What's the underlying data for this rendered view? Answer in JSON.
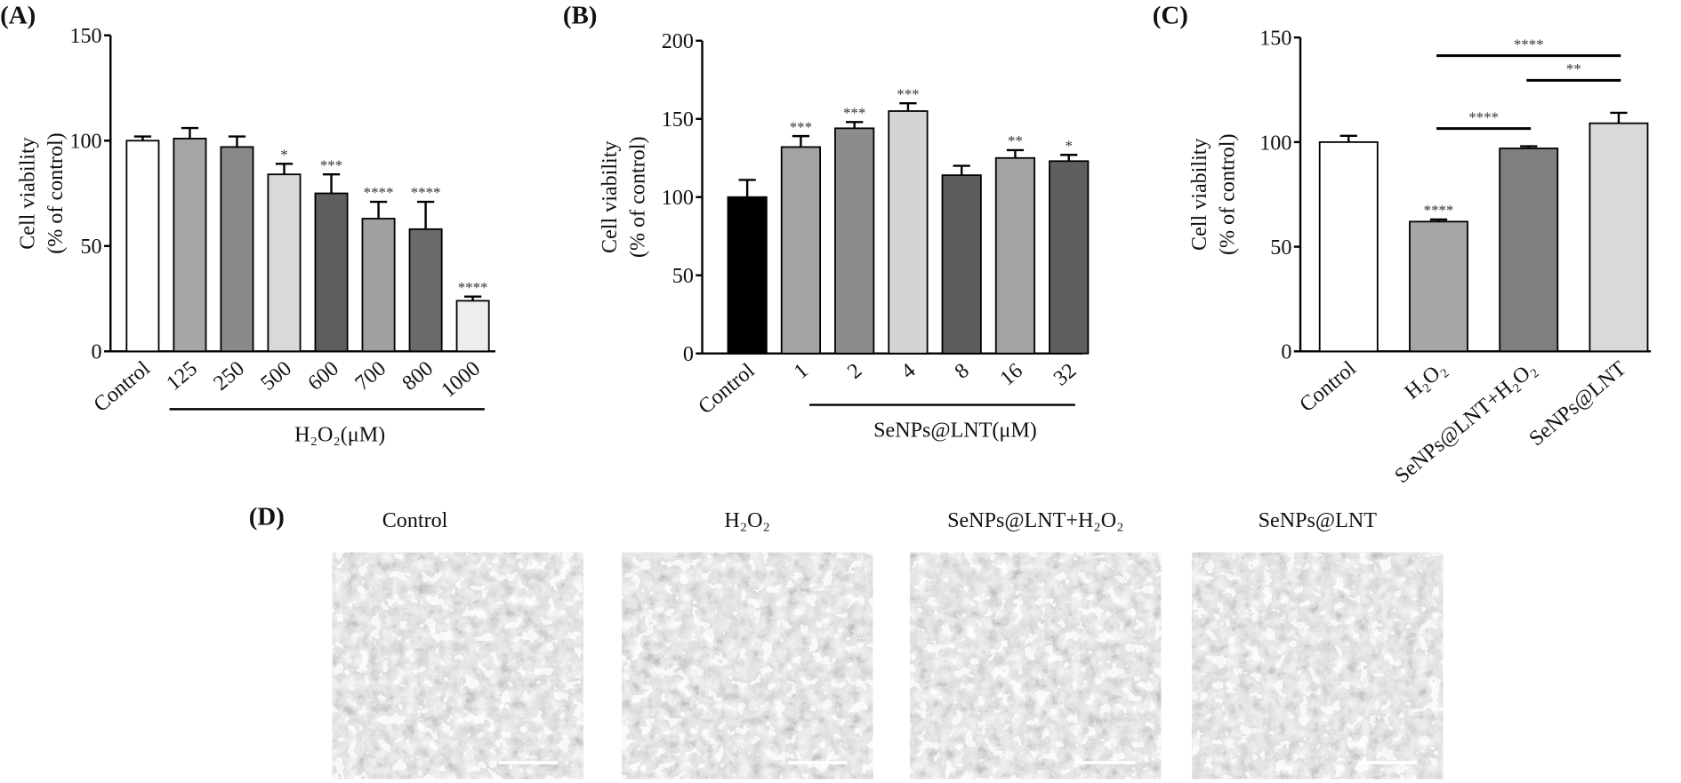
{
  "chart_data": [
    {
      "type": "bar",
      "panel": "(A)",
      "ylabel": [
        "Cell viability",
        "(% of control)"
      ],
      "categories": [
        "Control",
        "125",
        "250",
        "500",
        "600",
        "700",
        "800",
        "1000"
      ],
      "values": [
        100,
        101,
        97,
        84,
        75,
        63,
        58,
        24
      ],
      "errors": [
        2,
        5,
        5,
        5,
        9,
        8,
        13,
        2
      ],
      "colors": [
        "#ffffff",
        "#a6a6a6",
        "#8a8a8a",
        "#d9d9d9",
        "#5e5e5e",
        "#a0a0a0",
        "#6a6a6a",
        "#ededed"
      ],
      "annotations": [
        null,
        null,
        null,
        "*",
        "***",
        "****",
        "****",
        "****"
      ],
      "group_label": "H₂O₂(μM)",
      "ylim": [
        0,
        150
      ],
      "yticks": [
        0,
        50,
        100,
        150
      ]
    },
    {
      "type": "bar",
      "panel": "(B)",
      "ylabel": [
        "Cell viability",
        "(% of control)"
      ],
      "categories": [
        "Control",
        "1",
        "2",
        "4",
        "8",
        "16",
        "32"
      ],
      "values": [
        100,
        132,
        144,
        155,
        114,
        125,
        123
      ],
      "errors": [
        11,
        7,
        4,
        5,
        6,
        5,
        4
      ],
      "colors": [
        "#000000",
        "#a3a3a3",
        "#8c8c8c",
        "#d4d4d4",
        "#5c5c5c",
        "#a3a3a3",
        "#5f5f5f"
      ],
      "annotations": [
        null,
        "***",
        "***",
        "***",
        null,
        "**",
        "*"
      ],
      "group_label": "SeNPs@LNT(μM)",
      "ylim": [
        0,
        200
      ],
      "yticks": [
        0,
        50,
        100,
        150,
        200
      ]
    },
    {
      "type": "bar",
      "panel": "(C)",
      "ylabel": [
        "Cell viability",
        "(% of control)"
      ],
      "categories": [
        "Control",
        "H₂O₂",
        "SeNPs@LNT+H₂O₂",
        "SeNPs@LNT"
      ],
      "values": [
        100,
        62,
        97,
        109
      ],
      "errors": [
        3,
        1,
        1,
        5
      ],
      "colors": [
        "#ffffff",
        "#a6a6a6",
        "#7f7f7f",
        "#d9d9d9"
      ],
      "annotations": [
        null,
        "****",
        null,
        null
      ],
      "comparisons": [
        {
          "from": 1,
          "to": 3,
          "label": "****"
        },
        {
          "from": 2,
          "to": 3,
          "label": "**"
        },
        {
          "from": 1,
          "to": 2,
          "label": "****"
        }
      ],
      "ylim": [
        0,
        150
      ],
      "yticks": [
        0,
        50,
        100,
        150
      ]
    }
  ],
  "panel_d": {
    "panel": "(D)",
    "images": [
      "Control",
      "H₂O₂",
      "SeNPs@LNT+H₂O₂",
      "SeNPs@LNT"
    ]
  }
}
